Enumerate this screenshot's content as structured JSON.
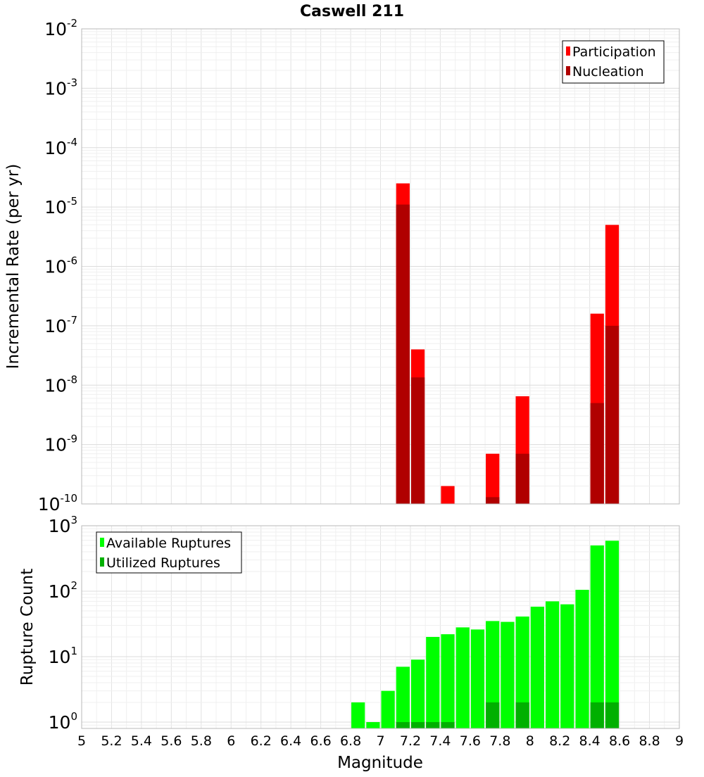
{
  "chart_data": [
    {
      "type": "bar",
      "title": "Caswell 211",
      "ylabel": "Incremental Rate (per yr)",
      "yscale": "log",
      "ylim": [
        1e-10,
        0.01
      ],
      "xlim": [
        5,
        9
      ],
      "grid": true,
      "legend_position": "top-right",
      "y_ticks": [
        {
          "base": "10",
          "exp": "-10"
        },
        {
          "base": "10",
          "exp": "-9"
        },
        {
          "base": "10",
          "exp": "-8"
        },
        {
          "base": "10",
          "exp": "-7"
        },
        {
          "base": "10",
          "exp": "-6"
        },
        {
          "base": "10",
          "exp": "-5"
        },
        {
          "base": "10",
          "exp": "-4"
        },
        {
          "base": "10",
          "exp": "-3"
        },
        {
          "base": "10",
          "exp": "-2"
        }
      ],
      "x": [
        7.1,
        7.2,
        7.4,
        7.7,
        7.9,
        8.4,
        8.5
      ],
      "series": [
        {
          "name": "Participation",
          "color": "#ff0000",
          "values": [
            2.5e-05,
            4e-08,
            2e-10,
            7e-10,
            6.5e-09,
            1.6e-07,
            5e-06
          ]
        },
        {
          "name": "Nucleation",
          "color": "#b00000",
          "values": [
            1.1e-05,
            1.35e-08,
            null,
            1.3e-10,
            7e-10,
            5e-09,
            1e-07
          ]
        }
      ]
    },
    {
      "type": "bar",
      "xlabel": "Magnitude",
      "ylabel": "Rupture Count",
      "yscale": "log",
      "ylim": [
        0.8,
        1000
      ],
      "xlim": [
        5,
        9
      ],
      "grid": true,
      "legend_position": "top-left",
      "y_ticks": [
        {
          "base": "10",
          "exp": "0"
        },
        {
          "base": "10",
          "exp": "1"
        },
        {
          "base": "10",
          "exp": "2"
        },
        {
          "base": "10",
          "exp": "3"
        }
      ],
      "x_tick_labels": [
        "5",
        "5.2",
        "5.4",
        "5.6",
        "5.8",
        "6",
        "6.2",
        "6.4",
        "6.6",
        "6.8",
        "7",
        "7.2",
        "7.4",
        "7.6",
        "7.8",
        "8",
        "8.2",
        "8.4",
        "8.6",
        "8.8",
        "9"
      ],
      "x": [
        6.8,
        6.9,
        7.0,
        7.1,
        7.2,
        7.3,
        7.4,
        7.5,
        7.6,
        7.7,
        7.8,
        7.9,
        8.0,
        8.1,
        8.2,
        8.3,
        8.4,
        8.5
      ],
      "series": [
        {
          "name": "Available Ruptures",
          "color": "#00ff00",
          "values": [
            2,
            1,
            3,
            7,
            9,
            20,
            22,
            28,
            26,
            35,
            34,
            41,
            58,
            70,
            63,
            105,
            500,
            590
          ]
        },
        {
          "name": "Utilized Ruptures",
          "color": "#00b000",
          "values": [
            null,
            null,
            null,
            1,
            1,
            1,
            1,
            null,
            null,
            2,
            null,
            2,
            null,
            null,
            null,
            null,
            2,
            2
          ]
        }
      ]
    }
  ]
}
